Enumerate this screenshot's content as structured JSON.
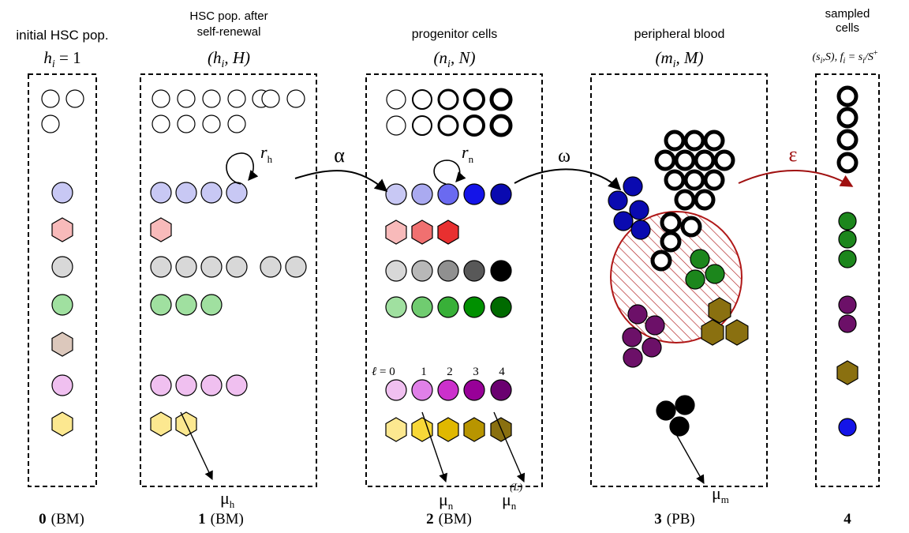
{
  "compartments": [
    {
      "title_line1": "initial HSC pop.",
      "title_line2": "",
      "symbol": "h",
      "sub": "i",
      "eq": " = 1",
      "bottom_num": "0",
      "bottom_label": "(BM)"
    },
    {
      "title_line1": "HSC pop. after",
      "title_line2": "self-renewal",
      "symbol": "(h",
      "sub": "i",
      "eq": ", H)",
      "bottom_num": "1",
      "bottom_label": "(BM)"
    },
    {
      "title_line1": "progenitor cells",
      "title_line2": "",
      "symbol": "(n",
      "sub": "i",
      "eq": ", N)",
      "bottom_num": "2",
      "bottom_label": "(BM)"
    },
    {
      "title_line1": "peripheral blood",
      "title_line2": "",
      "symbol": "(m",
      "sub": "i",
      "eq": ", M)",
      "bottom_num": "3",
      "bottom_label": "(PB)"
    },
    {
      "title_line1": "sampled",
      "title_line2": "cells",
      "symbol": "(s",
      "sub": "i",
      "eq": ",S), f",
      "sub2": "i",
      "eq2": " = s",
      "sub3": "i",
      "eq3": "/S",
      "sup3": "+",
      "bottom_num": "4",
      "bottom_label": ""
    }
  ],
  "transitions": {
    "alpha": "α",
    "omega": "ω",
    "epsilon": "ε",
    "r_h": "r",
    "r_h_sub": "h",
    "r_n": "r",
    "r_n_sub": "n"
  },
  "decay": {
    "mu_h": "μ",
    "mu_h_sub": "h",
    "mu_n": "μ",
    "mu_n_sub": "n",
    "mu_nL": "μ",
    "mu_nL_sub": "n",
    "mu_nL_sup": "(L)",
    "mu_m": "μ",
    "mu_m_sub": "m"
  },
  "level_labels": {
    "ell": "ℓ",
    "eq0": " = 0",
    "l1": "1",
    "l2": "2",
    "l3": "3",
    "l4": "4"
  },
  "colors": {
    "blue": [
      "#c8c8f4",
      "#aaaaf0",
      "#6a6af0",
      "#1414e8",
      "#0a0ab0"
    ],
    "red": [
      "#f8baba",
      "#f07070",
      "#e83030"
    ],
    "gray": [
      "#d8d8d8",
      "#b8b8b8",
      "#909090",
      "#585858",
      "#000000"
    ],
    "green": [
      "#a0e0a0",
      "#70cc70",
      "#38b038",
      "#009000",
      "#006a00"
    ],
    "purple": [
      "#f0c0f0",
      "#e080e8",
      "#cc30cc",
      "#980098",
      "#6a0070"
    ],
    "yellow": [
      "#fce890",
      "#f8d838",
      "#e0b800",
      "#b89500",
      "#8a7010"
    ],
    "tan": "#dcc8bc",
    "dark_green": "#1c861c",
    "dark_purple": "#6c1068",
    "dark_olive": "#8a7010",
    "epsilon_arrow": "#a01010"
  }
}
